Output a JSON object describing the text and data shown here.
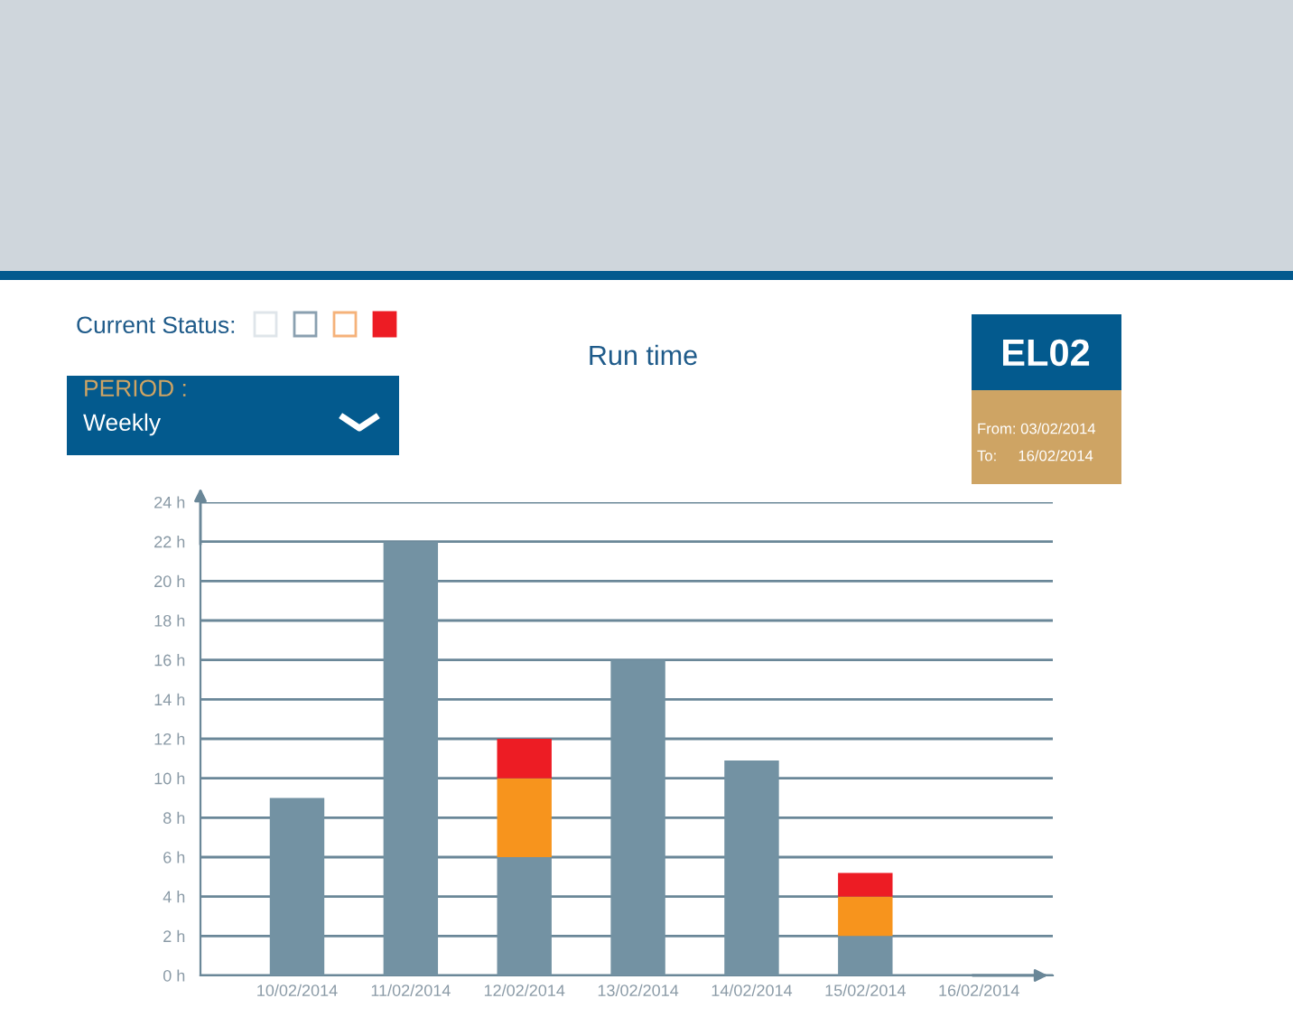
{
  "chart_data": {
    "type": "bar",
    "title": "Run time",
    "stacked": true,
    "grid": "y",
    "categories": [
      "10/02/2014",
      "11/02/2014",
      "12/02/2014",
      "13/02/2014",
      "14/02/2014",
      "15/02/2014",
      "16/02/2014"
    ],
    "series": [
      {
        "color": "#7392a3",
        "values": [
          9,
          22,
          6,
          16,
          10.9,
          2,
          0
        ]
      },
      {
        "color": "#f7941d",
        "values": [
          0,
          0,
          4,
          0,
          0,
          2,
          0
        ]
      },
      {
        "color": "#ed1c24",
        "values": [
          0,
          0,
          2,
          0,
          0,
          1.2,
          0
        ]
      }
    ],
    "ylim": [
      0,
      24
    ],
    "yticks": [
      {
        "value": 0,
        "label": "0 h"
      },
      {
        "value": 2,
        "label": "2 h"
      },
      {
        "value": 4,
        "label": "4 h"
      },
      {
        "value": 6,
        "label": "6 h"
      },
      {
        "value": 8,
        "label": "8 h"
      },
      {
        "value": 10,
        "label": "10 h"
      },
      {
        "value": 12,
        "label": "12 h"
      },
      {
        "value": 14,
        "label": "14 h"
      },
      {
        "value": 16,
        "label": "16 h"
      },
      {
        "value": 18,
        "label": "18 h"
      },
      {
        "value": 20,
        "label": "20 h"
      },
      {
        "value": 22,
        "label": "22 h"
      },
      {
        "value": 24,
        "label": "24 h"
      }
    ],
    "annotations": [
      "Current Status:",
      "PERIOD :",
      "Weekly",
      "EL02",
      "From: 03/02/2014",
      "To:     16/02/2014"
    ]
  }
}
